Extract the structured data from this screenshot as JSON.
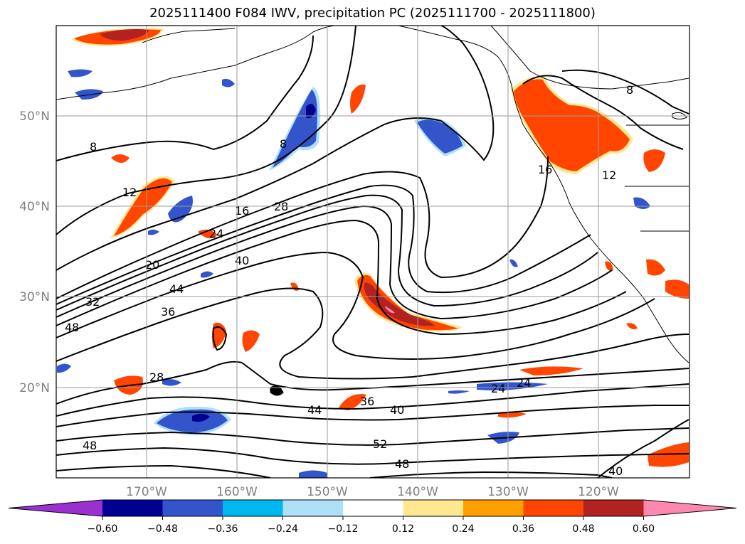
{
  "title": "2025111400 F084 IWV, precipitation PC (2025111700 - 2025111800)",
  "latitude_labels": [
    "50°N",
    "40°N",
    "30°N",
    "20°N"
  ],
  "longitude_labels": [
    "170°W",
    "160°W",
    "150°W",
    "140°W",
    "130°W",
    "120°W"
  ],
  "contour_labels": [
    "8",
    "8",
    "8",
    "12",
    "12",
    "16",
    "16",
    "20",
    "24",
    "24",
    "24",
    "28",
    "28",
    "32",
    "36",
    "36",
    "40",
    "40",
    "40",
    "44",
    "44",
    "48",
    "48",
    "48",
    "52"
  ],
  "colorbar": {
    "ticks": [
      "−0.60",
      "−0.48",
      "−0.36",
      "−0.24",
      "−0.12",
      "0.12",
      "0.24",
      "0.36",
      "0.48",
      "0.60"
    ],
    "colors": [
      "#9b30d0",
      "#000090",
      "#3355cc",
      "#00b8f0",
      "#aee0f8",
      "#ffffff",
      "#ffe890",
      "#ffa000",
      "#ff4500",
      "#b22222",
      "#ff88b0"
    ]
  }
}
